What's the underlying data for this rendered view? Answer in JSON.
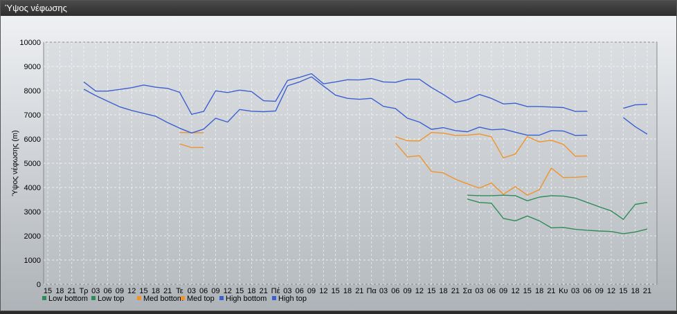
{
  "window": {
    "title": "Ύψος νέφωσης"
  },
  "chart_data": {
    "type": "line",
    "title": "",
    "xlabel": "",
    "ylabel": "Ύψος νέφωσης (m)",
    "ylim": [
      0,
      10000
    ],
    "yticks": [
      0,
      1000,
      2000,
      3000,
      4000,
      5000,
      6000,
      7000,
      8000,
      9000,
      10000
    ],
    "x_labels": [
      "15",
      "18",
      "21",
      "Τρ",
      "03",
      "06",
      "09",
      "12",
      "15",
      "18",
      "21",
      "Τε",
      "03",
      "06",
      "09",
      "12",
      "15",
      "18",
      "21",
      "Πέ",
      "03",
      "06",
      "09",
      "12",
      "15",
      "18",
      "21",
      "Πα",
      "03",
      "06",
      "09",
      "12",
      "15",
      "18",
      "21",
      "Σα",
      "03",
      "06",
      "09",
      "12",
      "15",
      "18",
      "21",
      "Κυ",
      "03",
      "06",
      "09",
      "12",
      "15",
      "18",
      "21"
    ],
    "grid": true,
    "legend_position": "bottom-left",
    "series": [
      {
        "name": "Low bottom",
        "color": "#2e8b57",
        "x": [
          35,
          36,
          37,
          38,
          39,
          40,
          41,
          42,
          43,
          44,
          45,
          46,
          47,
          48,
          49,
          50
        ],
        "values": [
          3520,
          3380,
          3350,
          2720,
          2620,
          2820,
          2620,
          2330,
          2350,
          2270,
          2230,
          2200,
          2180,
          2090,
          2160,
          2280
        ]
      },
      {
        "name": "Low top",
        "color": "#2e8b57",
        "x": [
          35,
          36,
          37,
          38,
          39,
          40,
          41,
          42,
          43,
          44,
          45,
          46,
          47,
          48,
          49,
          50
        ],
        "values": [
          3680,
          3660,
          3660,
          3680,
          3660,
          3450,
          3600,
          3660,
          3640,
          3560,
          3380,
          3200,
          3030,
          2680,
          3300,
          3380
        ]
      },
      {
        "name": "Med bottom",
        "color": "#f0932b",
        "x": [
          11,
          12,
          13,
          null,
          29,
          30,
          31,
          32,
          33,
          34,
          35,
          36,
          37,
          38,
          39,
          40,
          41,
          42,
          43,
          44,
          45
        ],
        "values": [
          5800,
          5650,
          5650,
          null,
          5840,
          5260,
          5310,
          4660,
          4600,
          4340,
          4150,
          3970,
          4180,
          3720,
          4030,
          3680,
          3910,
          4800,
          4410,
          4420,
          4450
        ]
      },
      {
        "name": "Med top",
        "color": "#f0932b",
        "x": [
          11,
          12,
          13,
          null,
          29,
          30,
          31,
          32,
          33,
          34,
          35,
          36,
          37,
          38,
          39,
          40,
          41,
          42,
          43,
          44,
          45
        ],
        "values": [
          6270,
          6260,
          6260,
          null,
          6090,
          5930,
          5920,
          6270,
          6240,
          6150,
          6160,
          6210,
          6090,
          5220,
          5380,
          6100,
          5880,
          5950,
          5780,
          5290,
          5300
        ]
      },
      {
        "name": "High bottom",
        "color": "#3b5fd0",
        "x": [
          3,
          4,
          5,
          6,
          7,
          8,
          9,
          10,
          11,
          12,
          13,
          14,
          15,
          16,
          17,
          18,
          19,
          20,
          21,
          22,
          23,
          24,
          25,
          26,
          27,
          28,
          29,
          30,
          31,
          32,
          33,
          34,
          35,
          36,
          37,
          38,
          39,
          40,
          41,
          42,
          43,
          44,
          45,
          null,
          48,
          49,
          50
        ],
        "values": [
          8060,
          7790,
          7560,
          7330,
          7180,
          7060,
          6940,
          6680,
          6450,
          6250,
          6410,
          6860,
          6700,
          7220,
          7150,
          7130,
          7160,
          8200,
          8360,
          8570,
          8190,
          7810,
          7680,
          7640,
          7680,
          7350,
          7260,
          6860,
          6700,
          6400,
          6470,
          6350,
          6300,
          6490,
          6380,
          6410,
          6280,
          6160,
          6160,
          6350,
          6330,
          6150,
          6160,
          null,
          6890,
          6510,
          6200
        ]
      },
      {
        "name": "High top",
        "color": "#3b5fd0",
        "x": [
          3,
          4,
          5,
          6,
          7,
          8,
          9,
          10,
          11,
          12,
          13,
          14,
          15,
          16,
          17,
          18,
          19,
          20,
          21,
          22,
          23,
          24,
          25,
          26,
          27,
          28,
          29,
          30,
          31,
          32,
          33,
          34,
          35,
          36,
          37,
          38,
          39,
          40,
          41,
          42,
          43,
          44,
          45,
          null,
          48,
          49,
          50
        ],
        "values": [
          8360,
          7980,
          7980,
          8050,
          8120,
          8230,
          8140,
          8090,
          7930,
          7020,
          7140,
          7990,
          7920,
          8020,
          7960,
          7580,
          7560,
          8420,
          8550,
          8700,
          8280,
          8360,
          8450,
          8440,
          8500,
          8360,
          8340,
          8470,
          8470,
          8130,
          7840,
          7510,
          7620,
          7840,
          7680,
          7450,
          7480,
          7340,
          7340,
          7320,
          7300,
          7140,
          7150,
          null,
          7270,
          7410,
          7430
        ]
      }
    ]
  }
}
